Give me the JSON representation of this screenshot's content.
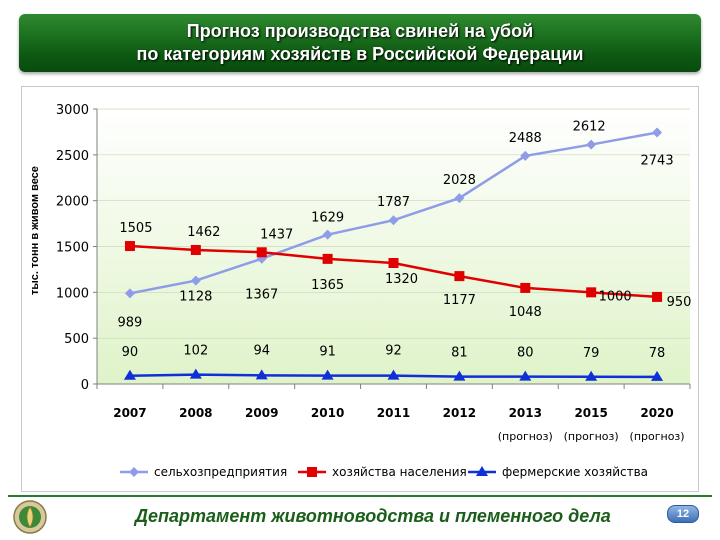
{
  "header": {
    "title_line1": "Прогноз производства свиней на убой",
    "title_line2": "по категориям хозяйств в Российской Федерации"
  },
  "footer": {
    "department": "Департамент животноводства и племенного дела",
    "page_number": "12"
  },
  "chart_data": {
    "type": "line",
    "ylabel": "тыс. тонн в живом весе",
    "ylim": [
      0,
      3000
    ],
    "yticks": [
      "0",
      "500",
      "1000",
      "1500",
      "2000",
      "2500",
      "3000"
    ],
    "categories": [
      "2007",
      "2008",
      "2009",
      "2010",
      "2011",
      "2012",
      "2013",
      "2015",
      "2020"
    ],
    "category_notes": [
      "",
      "",
      "",
      "",
      "",
      "",
      "(прогноз)",
      "(прогноз)",
      "(прогноз)"
    ],
    "legend_position": "bottom",
    "series": [
      {
        "name": "сельхозпредприятия",
        "color": "#8f9ce8",
        "marker": "diamond",
        "values": [
          989,
          1128,
          1367,
          1629,
          1787,
          2028,
          2488,
          2612,
          2743
        ]
      },
      {
        "name": "хозяйства населения",
        "color": "#e00000",
        "marker": "square",
        "values": [
          1505,
          1462,
          1437,
          1365,
          1320,
          1177,
          1048,
          1000,
          950
        ]
      },
      {
        "name": "фермерские хозяйства",
        "color": "#0f2fd8",
        "marker": "triangle",
        "values": [
          90,
          102,
          94,
          91,
          92,
          81,
          80,
          79,
          78
        ]
      }
    ]
  }
}
